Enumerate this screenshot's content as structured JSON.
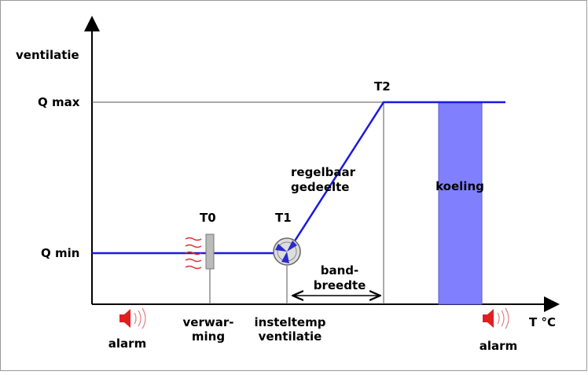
{
  "axes": {
    "y_label": "ventilatie",
    "x_label": "T °C",
    "q_max": "Q max",
    "q_min": "Q min"
  },
  "points": {
    "t0": "T0",
    "t1": "T1",
    "t2": "T2"
  },
  "regions": {
    "regelbaar": [
      "regelbaar",
      "gedeelte"
    ],
    "bandbreedte": [
      "band-",
      "breedte"
    ],
    "koeling": "koeling"
  },
  "bottom_labels": {
    "verwarming": [
      "verwar-",
      "ming"
    ],
    "insteltemp": [
      "insteltemp",
      "ventilatie"
    ],
    "alarm_left": "alarm",
    "alarm_right": "alarm"
  }
}
